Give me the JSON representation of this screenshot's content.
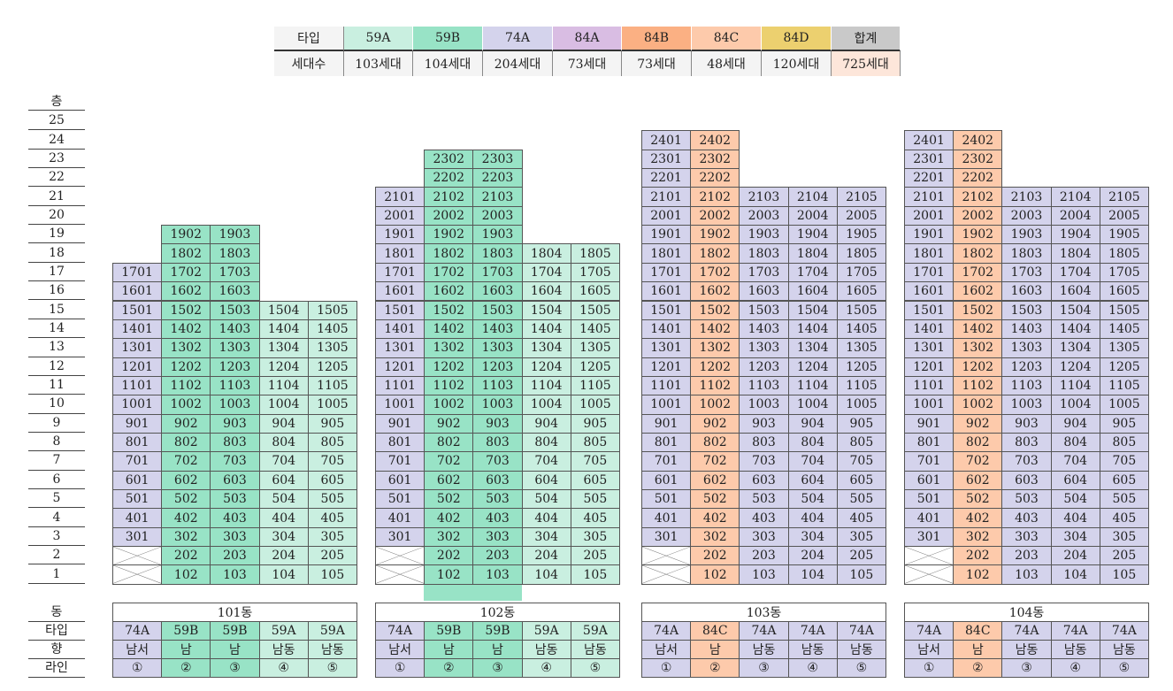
{
  "legend": {
    "row_labels": [
      "타입",
      "세대수"
    ],
    "items": [
      {
        "type": "59A",
        "count": "103세대",
        "color": "#c9efe0"
      },
      {
        "type": "59B",
        "count": "104세대",
        "color": "#98e3c6"
      },
      {
        "type": "74A",
        "count": "204세대",
        "color": "#d4d3ec"
      },
      {
        "type": "84A",
        "count": "73세대",
        "color": "#d9bde3"
      },
      {
        "type": "84B",
        "count": "73세대",
        "color": "#fbb083"
      },
      {
        "type": "84C",
        "count": "48세대",
        "color": "#fdcaab"
      },
      {
        "type": "84D",
        "count": "120세대",
        "color": "#ecd06f"
      },
      {
        "type": "합계",
        "count": "725세대",
        "color": "#c9c9c9",
        "count_color": "#fde6da"
      }
    ]
  },
  "side_labels": {
    "floor_header": "층",
    "dong": "동",
    "type": "타입",
    "direction": "향",
    "line": "라인"
  },
  "floors": [
    "25",
    "24",
    "23",
    "22",
    "21",
    "20",
    "19",
    "18",
    "17",
    "16",
    "15",
    "14",
    "13",
    "12",
    "11",
    "10",
    "9",
    "8",
    "7",
    "6",
    "5",
    "4",
    "3",
    "2",
    "1"
  ],
  "buildings": [
    {
      "name": "101동",
      "lines": [
        {
          "type": "74A",
          "dir": "남서",
          "num": "①",
          "bottom": 3,
          "top": 17
        },
        {
          "type": "59B",
          "dir": "남",
          "num": "②",
          "bottom": 1,
          "top": 19
        },
        {
          "type": "59B",
          "dir": "남",
          "num": "③",
          "bottom": 1,
          "top": 19
        },
        {
          "type": "59A",
          "dir": "남동",
          "num": "④",
          "bottom": 1,
          "top": 15
        },
        {
          "type": "59A",
          "dir": "남동",
          "num": "⑤",
          "bottom": 1,
          "top": 15
        }
      ]
    },
    {
      "name": "102동",
      "pilotis": true,
      "lines": [
        {
          "type": "74A",
          "dir": "남서",
          "num": "①",
          "bottom": 3,
          "top": 21
        },
        {
          "type": "59B",
          "dir": "남",
          "num": "②",
          "bottom": 1,
          "top": 23
        },
        {
          "type": "59B",
          "dir": "남",
          "num": "③",
          "bottom": 1,
          "top": 23
        },
        {
          "type": "59A",
          "dir": "남동",
          "num": "④",
          "bottom": 1,
          "top": 18
        },
        {
          "type": "59A",
          "dir": "남동",
          "num": "⑤",
          "bottom": 1,
          "top": 18
        }
      ]
    },
    {
      "name": "103동",
      "lines": [
        {
          "type": "74A",
          "dir": "남서",
          "num": "①",
          "bottom": 3,
          "top": 24
        },
        {
          "type": "84C",
          "dir": "남",
          "num": "②",
          "bottom": 1,
          "top": 24
        },
        {
          "type": "74A",
          "dir": "남동",
          "num": "③",
          "bottom": 1,
          "top": 21
        },
        {
          "type": "74A",
          "dir": "남동",
          "num": "④",
          "bottom": 1,
          "top": 21
        },
        {
          "type": "74A",
          "dir": "남동",
          "num": "⑤",
          "bottom": 1,
          "top": 21
        }
      ]
    },
    {
      "name": "104동",
      "lines": [
        {
          "type": "74A",
          "dir": "남서",
          "num": "①",
          "bottom": 3,
          "top": 24
        },
        {
          "type": "84C",
          "dir": "남",
          "num": "②",
          "bottom": 1,
          "top": 24
        },
        {
          "type": "74A",
          "dir": "남동",
          "num": "③",
          "bottom": 1,
          "top": 21
        },
        {
          "type": "74A",
          "dir": "남동",
          "num": "④",
          "bottom": 1,
          "top": 21
        },
        {
          "type": "74A",
          "dir": "남동",
          "num": "⑤",
          "bottom": 1,
          "top": 21
        }
      ]
    }
  ]
}
